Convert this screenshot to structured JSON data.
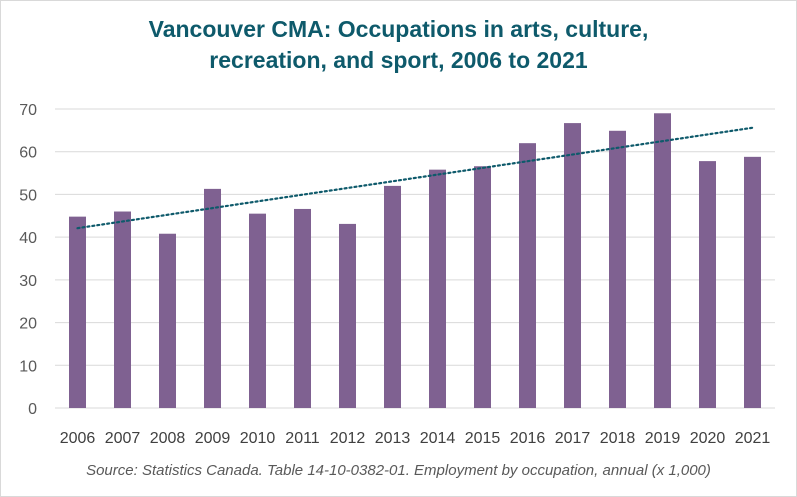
{
  "chart_data": {
    "type": "bar",
    "title_lines": [
      "Vancouver CMA: Occupations in arts, culture,",
      "recreation, and sport, 2006 to 2021"
    ],
    "xlabel": "",
    "ylabel": "",
    "categories": [
      "2006",
      "2007",
      "2008",
      "2009",
      "2010",
      "2011",
      "2012",
      "2013",
      "2014",
      "2015",
      "2016",
      "2017",
      "2018",
      "2019",
      "2020",
      "2021"
    ],
    "values": [
      44.8,
      46.0,
      40.8,
      51.3,
      45.5,
      46.6,
      43.1,
      52.0,
      55.8,
      56.6,
      62.0,
      66.7,
      64.9,
      69.0,
      57.8,
      58.8
    ],
    "ylim": [
      0,
      70
    ],
    "yticks": [
      0,
      10,
      20,
      30,
      40,
      50,
      60,
      70
    ],
    "grid": true,
    "trendline": {
      "type": "linear",
      "style": "dotted"
    },
    "colors": {
      "bar": "#7f6191",
      "trend": "#0e5a6b",
      "title": "#0e5a6b",
      "grid": "#d9d9d9"
    },
    "source": "Source: Statistics Canada. Table 14-10-0382-01. Employment by occupation, annual (x 1,000)"
  }
}
